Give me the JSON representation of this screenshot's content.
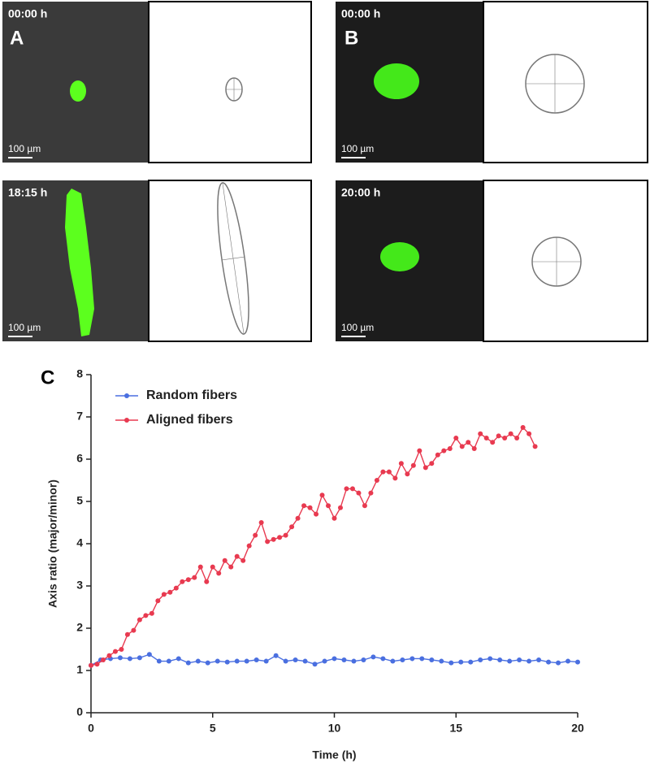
{
  "panels": [
    {
      "label": "A",
      "frames": [
        {
          "time": "00:00 h",
          "scale": "100 µm"
        },
        {
          "time": "18:15 h",
          "scale": "100 µm"
        }
      ]
    },
    {
      "label": "B",
      "frames": [
        {
          "time": "00:00 h",
          "scale": "100 µm"
        },
        {
          "time": "20:00 h",
          "scale": "100 µm"
        }
      ]
    }
  ],
  "chart_label": "C",
  "chart_data": {
    "type": "line",
    "x_label": "Time (h)",
    "y_label": "Axis ratio (major/minor)",
    "xlim": [
      0,
      20
    ],
    "xticks": [
      0,
      5,
      10,
      15,
      20
    ],
    "ylim": [
      0,
      8
    ],
    "yticks": [
      0,
      1,
      2,
      3,
      4,
      5,
      6,
      7,
      8
    ],
    "legend": "upper left",
    "series": [
      {
        "name": "Random fibers",
        "color": "#4a6fe0",
        "x": [
          0,
          0.4,
          0.8,
          1.2,
          1.6,
          2,
          2.4,
          2.8,
          3.2,
          3.6,
          4,
          4.4,
          4.8,
          5.2,
          5.6,
          6,
          6.4,
          6.8,
          7.2,
          7.6,
          8,
          8.4,
          8.8,
          9.2,
          9.6,
          10,
          10.4,
          10.8,
          11.2,
          11.6,
          12,
          12.4,
          12.8,
          13.2,
          13.6,
          14,
          14.4,
          14.8,
          15.2,
          15.6,
          16,
          16.4,
          16.8,
          17.2,
          17.6,
          18,
          18.4,
          18.8,
          19.2,
          19.6,
          20
        ],
        "values": [
          1.12,
          1.25,
          1.28,
          1.3,
          1.28,
          1.3,
          1.38,
          1.22,
          1.22,
          1.28,
          1.18,
          1.22,
          1.18,
          1.22,
          1.2,
          1.22,
          1.22,
          1.25,
          1.22,
          1.35,
          1.22,
          1.25,
          1.22,
          1.15,
          1.22,
          1.28,
          1.25,
          1.22,
          1.25,
          1.32,
          1.28,
          1.22,
          1.25,
          1.28,
          1.28,
          1.25,
          1.22,
          1.18,
          1.2,
          1.2,
          1.25,
          1.28,
          1.25,
          1.22,
          1.25,
          1.22,
          1.25,
          1.2,
          1.18,
          1.22,
          1.2
        ]
      },
      {
        "name": "Aligned fibers",
        "color": "#e83a50",
        "x": [
          0,
          0.25,
          0.5,
          0.75,
          1,
          1.25,
          1.5,
          1.75,
          2,
          2.25,
          2.5,
          2.75,
          3,
          3.25,
          3.5,
          3.75,
          4,
          4.25,
          4.5,
          4.75,
          5,
          5.25,
          5.5,
          5.75,
          6,
          6.25,
          6.5,
          6.75,
          7,
          7.25,
          7.5,
          7.75,
          8,
          8.25,
          8.5,
          8.75,
          9,
          9.25,
          9.5,
          9.75,
          10,
          10.25,
          10.5,
          10.75,
          11,
          11.25,
          11.5,
          11.75,
          12,
          12.25,
          12.5,
          12.75,
          13,
          13.25,
          13.5,
          13.75,
          14,
          14.25,
          14.5,
          14.75,
          15,
          15.25,
          15.5,
          15.75,
          16,
          16.25,
          16.5,
          16.75,
          17,
          17.25,
          17.5,
          17.75,
          18,
          18.25
        ],
        "values": [
          1.12,
          1.15,
          1.25,
          1.35,
          1.45,
          1.5,
          1.85,
          1.95,
          2.2,
          2.3,
          2.35,
          2.65,
          2.8,
          2.85,
          2.95,
          3.1,
          3.15,
          3.2,
          3.45,
          3.1,
          3.45,
          3.3,
          3.6,
          3.45,
          3.7,
          3.6,
          3.95,
          4.2,
          4.5,
          4.05,
          4.1,
          4.15,
          4.2,
          4.4,
          4.6,
          4.9,
          4.85,
          4.7,
          5.15,
          4.9,
          4.6,
          4.85,
          5.3,
          5.3,
          5.2,
          4.9,
          5.2,
          5.5,
          5.7,
          5.7,
          5.55,
          5.9,
          5.65,
          5.85,
          6.2,
          5.8,
          5.9,
          6.1,
          6.2,
          6.25,
          6.5,
          6.3,
          6.4,
          6.25,
          6.6,
          6.5,
          6.4,
          6.55,
          6.5,
          6.6,
          6.5,
          6.75,
          6.6,
          6.3
        ]
      }
    ]
  }
}
